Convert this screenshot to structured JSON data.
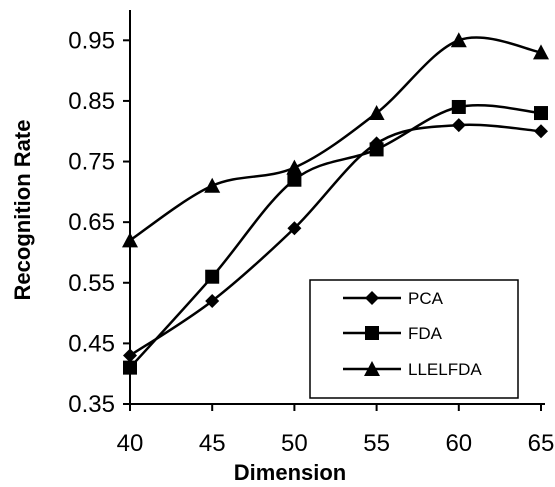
{
  "chart_data": {
    "type": "line",
    "title": "",
    "xlabel": "Dimension",
    "ylabel": "Recognition Rate",
    "x": [
      40,
      45,
      50,
      55,
      60,
      65
    ],
    "x_ticks": [
      "40",
      "45",
      "50",
      "55",
      "60",
      "65"
    ],
    "y_ticks": [
      "0.35",
      "0.45",
      "0.55",
      "0.65",
      "0.75",
      "0.85",
      "0.95"
    ],
    "xlim": [
      40,
      65
    ],
    "ylim": [
      0.35,
      1.0
    ],
    "grid": false,
    "legend_position": "bottom-right",
    "series": [
      {
        "name": "PCA",
        "marker": "diamond",
        "values": [
          0.43,
          0.52,
          0.64,
          0.78,
          0.81,
          0.8
        ]
      },
      {
        "name": "FDA",
        "marker": "square",
        "values": [
          0.41,
          0.56,
          0.72,
          0.77,
          0.84,
          0.83
        ]
      },
      {
        "name": "LLELFDA",
        "marker": "triangle",
        "values": [
          0.62,
          0.71,
          0.74,
          0.83,
          0.95,
          0.93
        ]
      }
    ],
    "colors": {
      "line": "#000000",
      "background": "#ffffff"
    }
  }
}
